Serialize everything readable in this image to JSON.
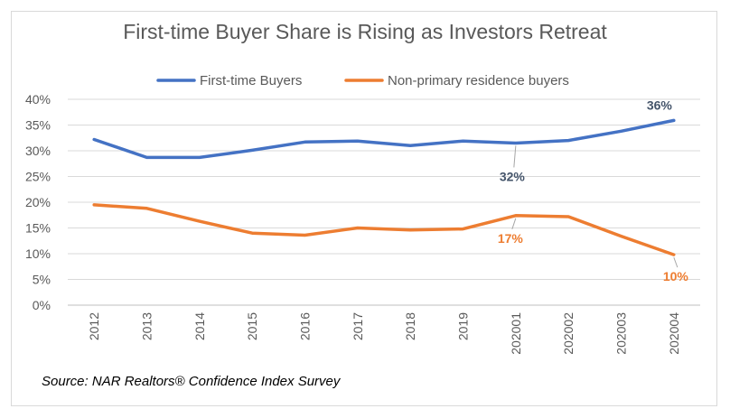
{
  "chart_data": {
    "type": "line",
    "title": "First-time Buyer Share is Rising as Investors Retreat",
    "categories": [
      "2012",
      "2013",
      "2014",
      "2015",
      "2016",
      "2017",
      "2018",
      "2019",
      "202001",
      "202002",
      "202003",
      "202004"
    ],
    "ylim": [
      0,
      40
    ],
    "yticks": [
      "0%",
      "5%",
      "10%",
      "15%",
      "20%",
      "25%",
      "30%",
      "35%",
      "40%"
    ],
    "grid": true,
    "legend_position": "top",
    "series": [
      {
        "name": "First-time Buyers",
        "color": "#4472C4",
        "values": [
          32.2,
          28.7,
          28.7,
          30.1,
          31.7,
          31.9,
          31.0,
          31.9,
          31.5,
          32.0,
          33.8,
          35.9
        ]
      },
      {
        "name": "Non-primary residence buyers",
        "color": "#ED7D31",
        "values": [
          19.5,
          18.8,
          16.3,
          14.0,
          13.6,
          15.0,
          14.6,
          14.8,
          17.4,
          17.2,
          13.4,
          9.8
        ]
      }
    ],
    "annotations": [
      {
        "series": 0,
        "index": 11,
        "text": "36%",
        "color": "#44546A"
      },
      {
        "series": 0,
        "index": 8,
        "text": "32%",
        "color": "#44546A"
      },
      {
        "series": 1,
        "index": 8,
        "text": "17%",
        "color": "#ED7D31"
      },
      {
        "series": 1,
        "index": 11,
        "text": "10%",
        "color": "#ED7D31"
      }
    ],
    "source": "Source: NAR Realtors® Confidence Index Survey"
  }
}
